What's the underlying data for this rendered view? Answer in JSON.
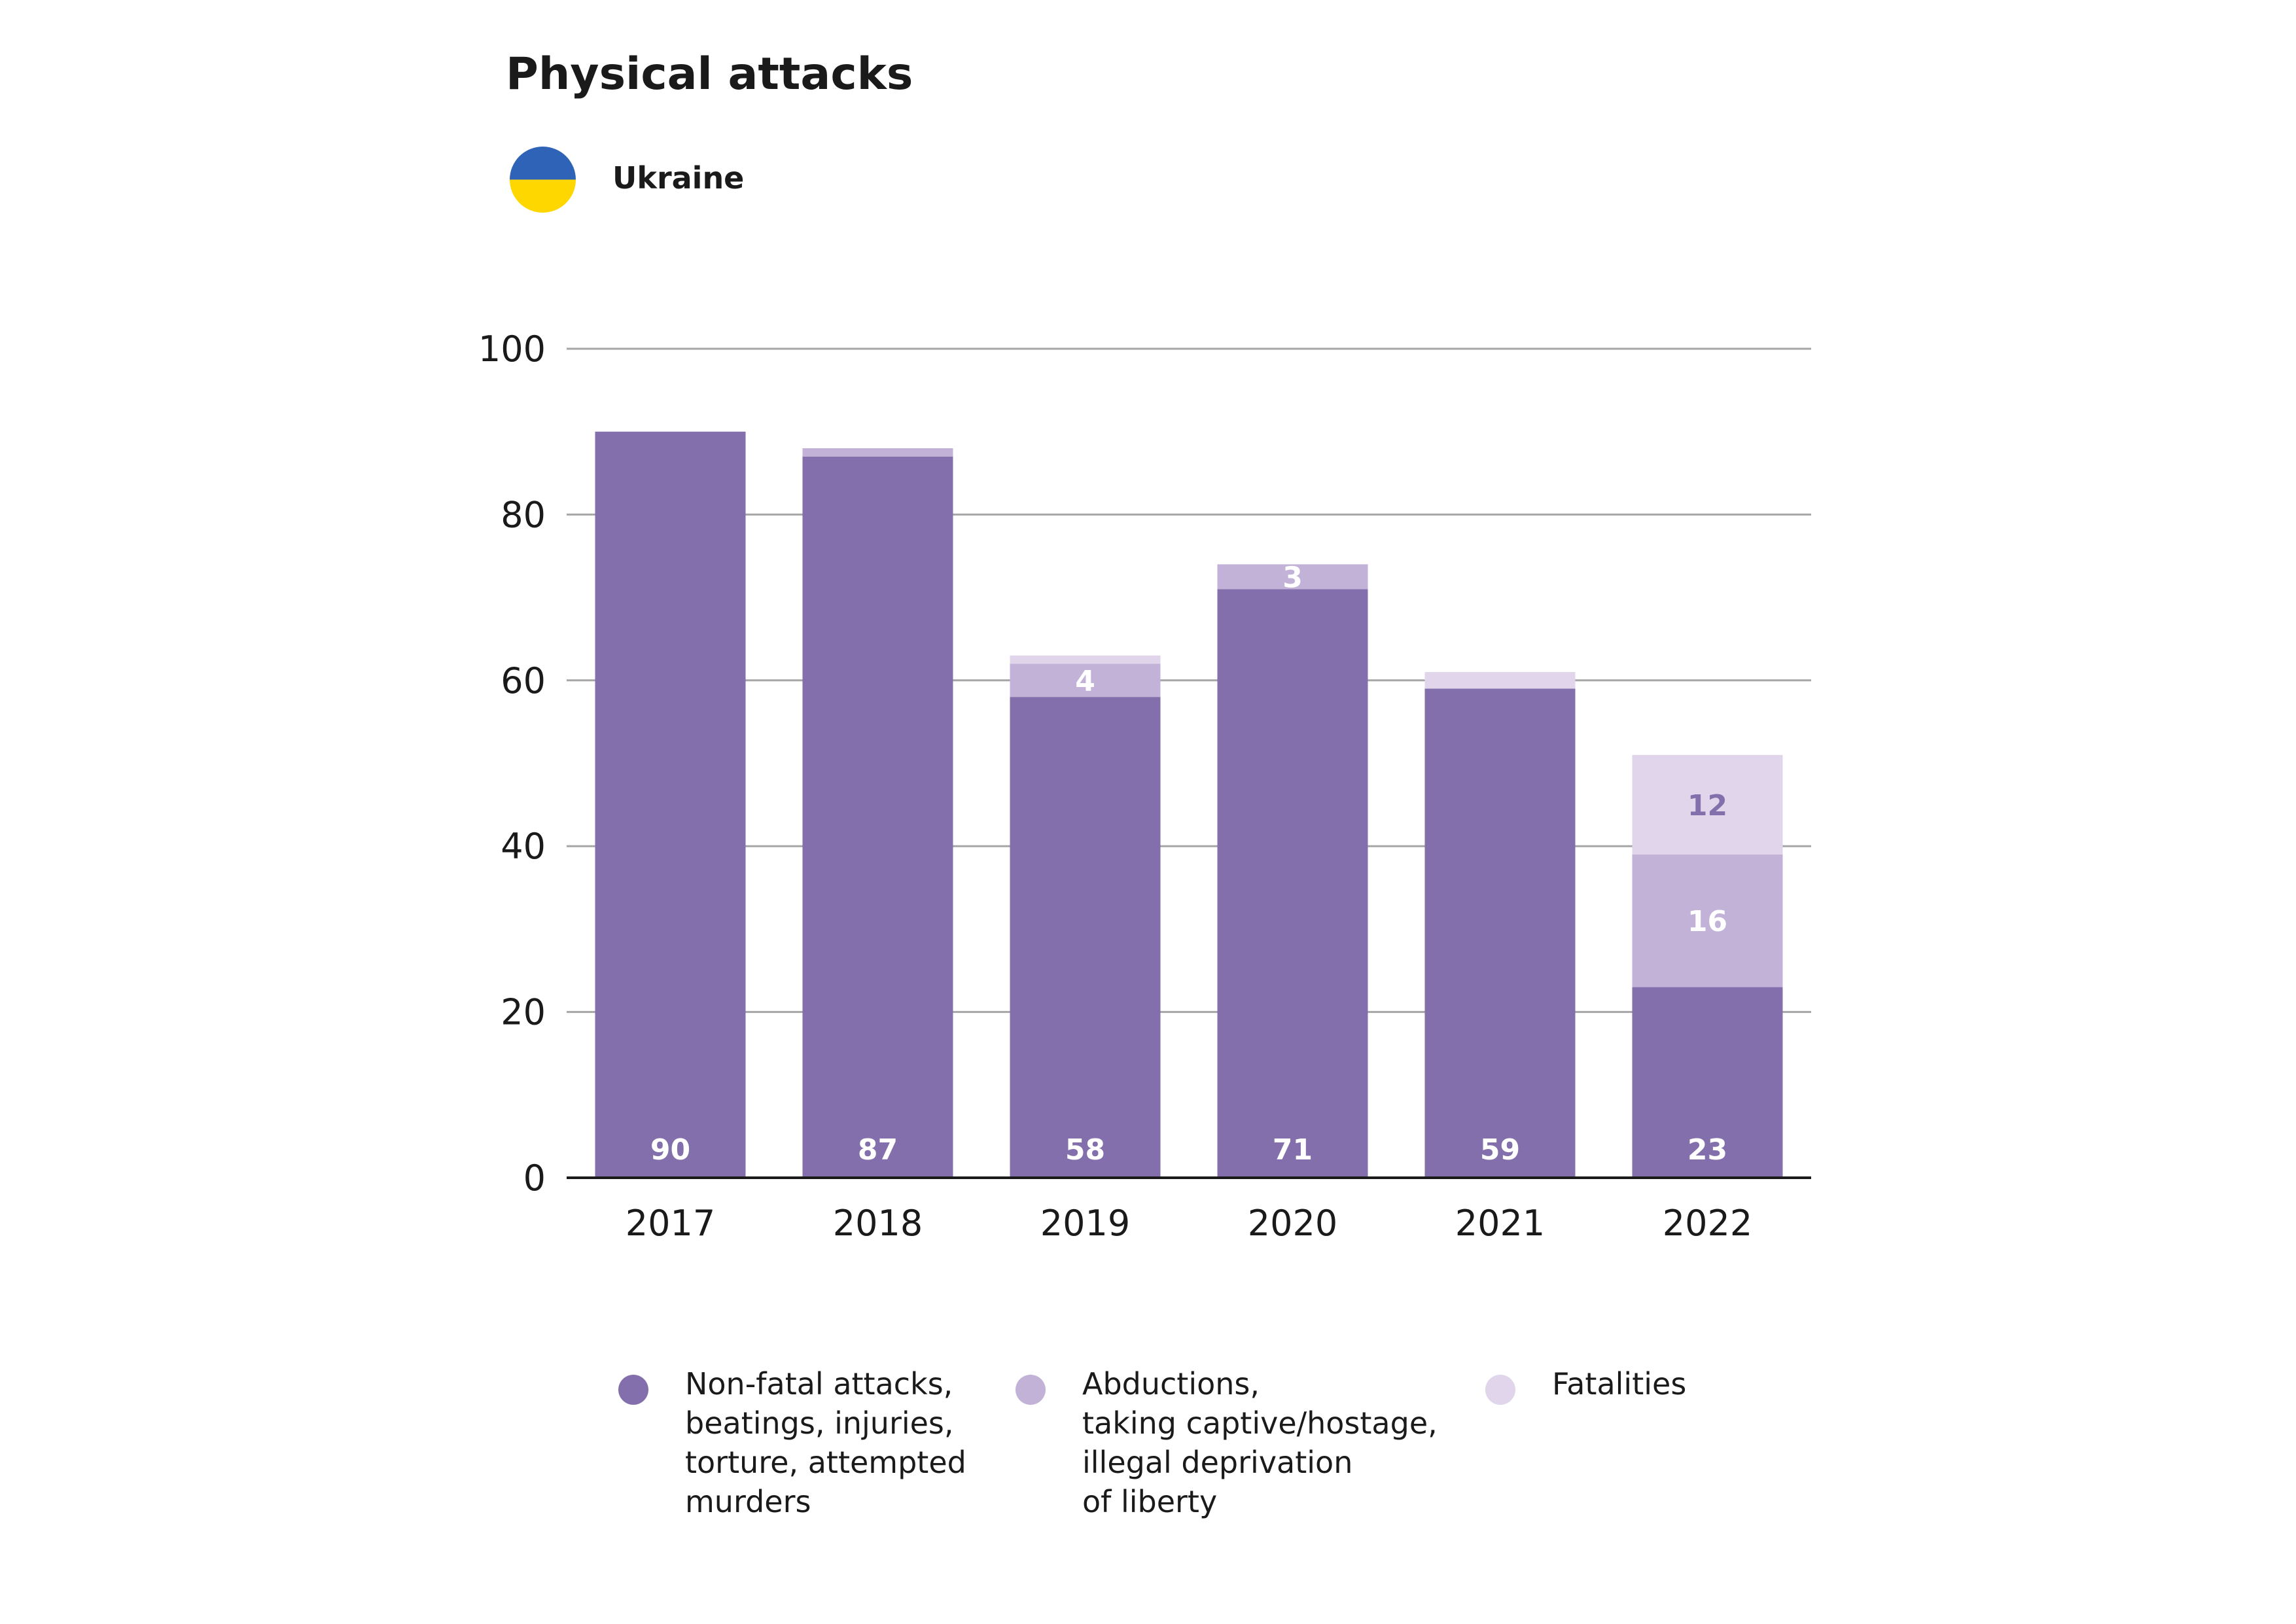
{
  "title": "Physical attacks",
  "country": "Ukraine",
  "flag_colors": {
    "top": "#2e63b8",
    "bottom": "#ffd700"
  },
  "chart_data": {
    "type": "bar",
    "stacked": true,
    "categories": [
      "2017",
      "2018",
      "2019",
      "2020",
      "2021",
      "2022"
    ],
    "series": [
      {
        "name": "Non-fatal attacks,\nbeatings, injuries,\ntorture, attempted\nmurders",
        "color": "#826fab",
        "values": [
          90,
          87,
          58,
          71,
          59,
          23
        ],
        "labels": [
          "90",
          "87",
          "58",
          "71",
          "59",
          "23"
        ]
      },
      {
        "name": "Abductions,\ntaking captive/hostage,\nillegal deprivation\nof liberty",
        "color": "#c2b2d8",
        "values": [
          0,
          1,
          4,
          3,
          0,
          16
        ],
        "labels": [
          "",
          "",
          "4",
          "3",
          "",
          "16"
        ]
      },
      {
        "name": "Fatalities",
        "color": "#e0d5ea",
        "values": [
          0,
          0,
          1,
          0,
          2,
          12
        ],
        "labels": [
          "",
          "",
          "",
          "",
          "",
          "12"
        ]
      }
    ],
    "ylim": [
      0,
      100
    ],
    "yticks": [
      "0",
      "20",
      "40",
      "60",
      "80",
      "100"
    ],
    "grid": true,
    "legend_position": "bottom"
  }
}
